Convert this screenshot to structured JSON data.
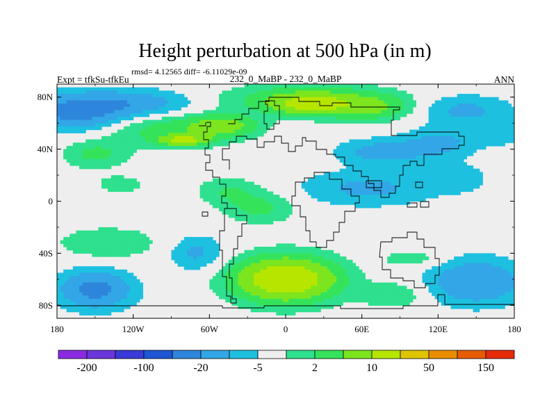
{
  "chart_data": {
    "type": "filled-contour-map",
    "title": "Height perturbation at 500 hPa (in m)",
    "stats_line": "rmsd= 4.12565 diff= -6.11029e-09",
    "left_label": "Expt = tfkSu-tfkEu",
    "center_label": "232_0_MaBP - 232_0_MaBP",
    "right_label": "ANN",
    "xlim": [
      -180,
      180
    ],
    "ylim": [
      -90,
      90
    ],
    "x_ticks": [
      {
        "value": -180,
        "label": "180"
      },
      {
        "value": -120,
        "label": "120W"
      },
      {
        "value": -60,
        "label": "60W"
      },
      {
        "value": 0,
        "label": "0"
      },
      {
        "value": 60,
        "label": "60E"
      },
      {
        "value": 120,
        "label": "120E"
      },
      {
        "value": 180,
        "label": "180"
      }
    ],
    "y_ticks": [
      {
        "value": 80,
        "label": "80N"
      },
      {
        "value": 40,
        "label": "40N"
      },
      {
        "value": 0,
        "label": "0"
      },
      {
        "value": -40,
        "label": "40S"
      },
      {
        "value": -80,
        "label": "80S"
      }
    ],
    "contour_levels": [
      -200,
      -150,
      -100,
      -50,
      -20,
      -10,
      -5,
      -2,
      2,
      5,
      10,
      20,
      50,
      100,
      150,
      200
    ],
    "colorbar_colors": [
      "#8a2be2",
      "#6a36dc",
      "#3a3ad8",
      "#1f56d6",
      "#2e86dc",
      "#32a6e6",
      "#1ec0e0",
      "#eeeeee",
      "#2fe08e",
      "#35e35a",
      "#7ce51e",
      "#b6e600",
      "#e0c400",
      "#e88e00",
      "#e65c00",
      "#e62a0a"
    ],
    "colorbar_labels": [
      {
        "level": -200,
        "label": "-200"
      },
      {
        "level": -100,
        "label": "-100"
      },
      {
        "level": -20,
        "label": "-20"
      },
      {
        "level": -5,
        "label": "-5"
      },
      {
        "level": 2,
        "label": "2"
      },
      {
        "level": 10,
        "label": "10"
      },
      {
        "level": 50,
        "label": "50"
      },
      {
        "level": 150,
        "label": "150"
      }
    ],
    "colorbar_placement": "bottom",
    "field_features": [
      {
        "lon": -165,
        "lat": 68,
        "half_width_lon": 38,
        "half_height_lat": 14,
        "value": -12
      },
      {
        "lon": -120,
        "lat": 75,
        "half_width_lon": 50,
        "half_height_lat": 11,
        "value": -8
      },
      {
        "lon": -150,
        "lat": 36,
        "half_width_lon": 26,
        "half_height_lat": 11,
        "value": 6
      },
      {
        "lon": -90,
        "lat": 55,
        "half_width_lon": 55,
        "half_height_lat": 13,
        "value": 7
      },
      {
        "lon": -50,
        "lat": 58,
        "half_width_lon": 26,
        "half_height_lat": 8,
        "value": 12
      },
      {
        "lon": -80,
        "lat": 47,
        "half_width_lon": 18,
        "half_height_lat": 4,
        "value": 22
      },
      {
        "lon": 15,
        "lat": 78,
        "half_width_lon": 65,
        "half_height_lat": 12,
        "value": 9
      },
      {
        "lon": 20,
        "lat": 75,
        "half_width_lon": 28,
        "half_height_lat": 7,
        "value": 22
      },
      {
        "lon": 65,
        "lat": 72,
        "half_width_lon": 35,
        "half_height_lat": 10,
        "value": 10
      },
      {
        "lon": 140,
        "lat": 70,
        "half_width_lon": 40,
        "half_height_lat": 12,
        "value": -6
      },
      {
        "lon": 165,
        "lat": 52,
        "half_width_lon": 25,
        "half_height_lat": 10,
        "value": -4
      },
      {
        "lon": 75,
        "lat": 38,
        "half_width_lon": 35,
        "half_height_lat": 10,
        "value": -7
      },
      {
        "lon": 120,
        "lat": 44,
        "half_width_lon": 30,
        "half_height_lat": 12,
        "value": -6
      },
      {
        "lon": 65,
        "lat": 10,
        "half_width_lon": 55,
        "half_height_lat": 14,
        "value": -6
      },
      {
        "lon": 135,
        "lat": 18,
        "half_width_lon": 25,
        "half_height_lat": 11,
        "value": -4
      },
      {
        "lon": -130,
        "lat": 13,
        "half_width_lon": 20,
        "half_height_lat": 7,
        "value": 4
      },
      {
        "lon": -45,
        "lat": 8,
        "half_width_lon": 25,
        "half_height_lat": 11,
        "value": 5
      },
      {
        "lon": -20,
        "lat": -5,
        "half_width_lon": 28,
        "half_height_lat": 12,
        "value": 6
      },
      {
        "lon": -140,
        "lat": -32,
        "half_width_lon": 40,
        "half_height_lat": 12,
        "value": 5
      },
      {
        "lon": 0,
        "lat": -60,
        "half_width_lon": 45,
        "half_height_lat": 20,
        "value": 12
      },
      {
        "lon": 0,
        "lat": -60,
        "half_width_lon": 32,
        "half_height_lat": 13,
        "value": 24
      },
      {
        "lon": -150,
        "lat": -68,
        "half_width_lon": 30,
        "half_height_lat": 15,
        "value": -12
      },
      {
        "lon": -70,
        "lat": -40,
        "half_width_lon": 22,
        "half_height_lat": 14,
        "value": -6
      },
      {
        "lon": 150,
        "lat": -62,
        "half_width_lon": 38,
        "half_height_lat": 18,
        "value": -10
      },
      {
        "lon": 100,
        "lat": -44,
        "half_width_lon": 25,
        "half_height_lat": 7,
        "value": 4
      },
      {
        "lon": 85,
        "lat": -72,
        "half_width_lon": 25,
        "half_height_lat": 10,
        "value": 5
      }
    ]
  }
}
